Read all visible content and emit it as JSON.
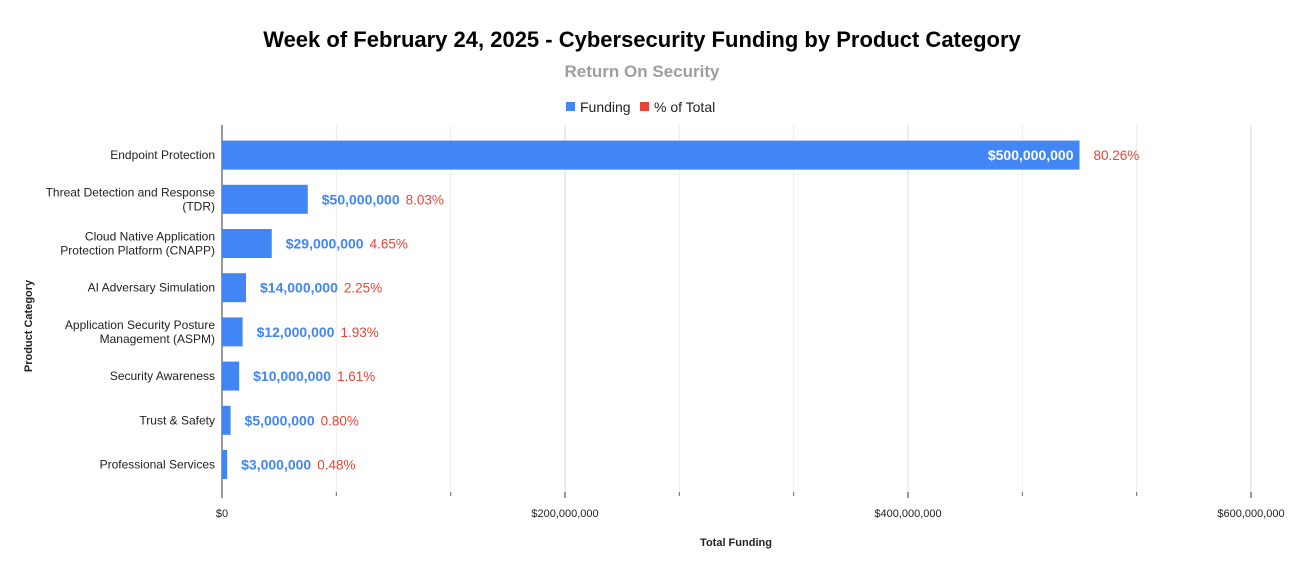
{
  "chart_data": {
    "type": "bar",
    "orientation": "horizontal",
    "title": "Week of February 24, 2025 - Cybersecurity Funding by Product Category",
    "subtitle": "Return On Security",
    "xlabel": "Total Funding",
    "ylabel": "Product Category",
    "xlim": [
      0,
      600000000
    ],
    "xticks": [
      0,
      200000000,
      400000000,
      600000000
    ],
    "xtick_labels": [
      "$0",
      "$200,000,000",
      "$400,000,000",
      "$600,000,000"
    ],
    "grid": true,
    "legend_position": "top",
    "categories": [
      [
        "Endpoint Protection"
      ],
      [
        "Threat Detection and Response",
        "(TDR)"
      ],
      [
        "Cloud Native Application",
        "Protection Platform (CNAPP)"
      ],
      [
        "AI Adversary Simulation"
      ],
      [
        "Application Security Posture",
        "Management (ASPM)"
      ],
      [
        "Security Awareness"
      ],
      [
        "Trust & Safety"
      ],
      [
        "Professional Services"
      ]
    ],
    "series": [
      {
        "name": "Funding",
        "color": "#4285f4",
        "values": [
          500000000,
          50000000,
          29000000,
          14000000,
          12000000,
          10000000,
          5000000,
          3000000
        ],
        "labels": [
          "$500,000,000",
          "$50,000,000",
          "$29,000,000",
          "$14,000,000",
          "$12,000,000",
          "$10,000,000",
          "$5,000,000",
          "$3,000,000"
        ]
      },
      {
        "name": "% of Total",
        "color": "#ea4335",
        "values": [
          80.26,
          8.03,
          4.65,
          2.25,
          1.93,
          1.61,
          0.8,
          0.48
        ],
        "labels": [
          "80.26%",
          "8.03%",
          "4.65%",
          "2.25%",
          "1.93%",
          "1.61%",
          "0.80%",
          "0.48%"
        ]
      }
    ]
  }
}
